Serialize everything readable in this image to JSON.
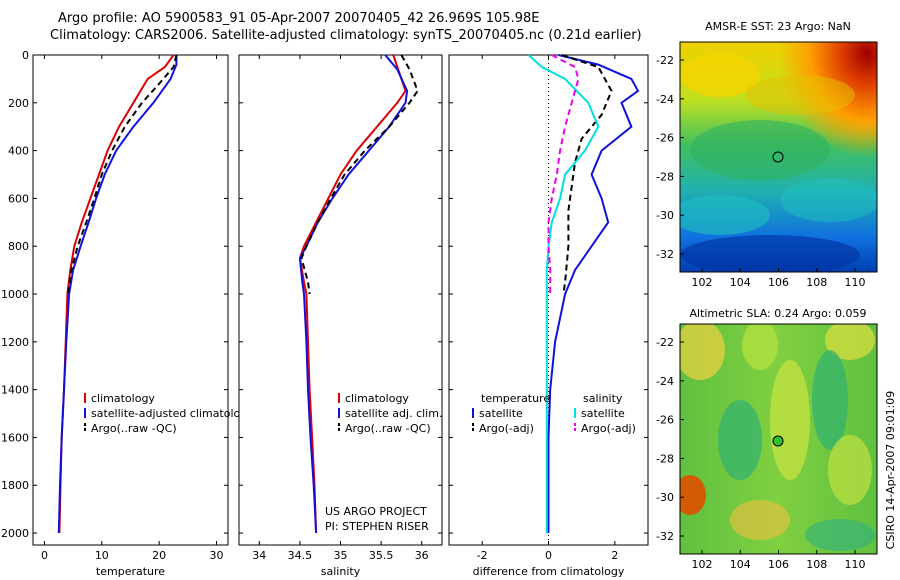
{
  "titles": {
    "line1": "Argo profile: AO 5900583_91 05-Apr-2007 20070405_42 26.969S 105.98E",
    "line2": "Climatology: CARS2006. Satellite-adjusted climatology: synTS_20070405.nc (0.21d earlier)"
  },
  "colors": {
    "climatology": "#dd0000",
    "satellite": "#1010dd",
    "argo": "#000000",
    "argo_sal_adj": "#ee00ee",
    "sal_satellite": "#00e0e0"
  },
  "chart_data": [
    {
      "type": "line",
      "xlabel": "temperature",
      "ylim": [
        2050,
        0
      ],
      "xlim": [
        -2,
        32
      ],
      "xticks": [
        "0",
        "10",
        "20",
        "30"
      ],
      "yticks": [
        "0",
        "200",
        "400",
        "600",
        "800",
        "1000",
        "1200",
        "1400",
        "1600",
        "1800",
        "2000"
      ],
      "legend": [
        "climatology",
        "satellite-adjusted climatology",
        "Argo(..raw -QC)"
      ],
      "series": [
        {
          "name": "climatology",
          "color": "#dd0000",
          "dash": "none",
          "points": [
            [
              22.5,
              0
            ],
            [
              21,
              50
            ],
            [
              18,
              100
            ],
            [
              15.5,
              200
            ],
            [
              13,
              300
            ],
            [
              11,
              400
            ],
            [
              9.5,
              500
            ],
            [
              8,
              600
            ],
            [
              6.5,
              700
            ],
            [
              5.2,
              800
            ],
            [
              4.5,
              900
            ],
            [
              4,
              1000
            ],
            [
              3.7,
              1200
            ],
            [
              3.4,
              1400
            ],
            [
              3,
              1600
            ],
            [
              2.8,
              1800
            ],
            [
              2.6,
              2000
            ]
          ]
        },
        {
          "name": "satellite-adjusted climatology",
          "color": "#1010dd",
          "dash": "none",
          "points": [
            [
              23,
              0
            ],
            [
              23,
              40
            ],
            [
              22,
              100
            ],
            [
              19,
              200
            ],
            [
              15.5,
              300
            ],
            [
              12.5,
              400
            ],
            [
              10.5,
              500
            ],
            [
              9,
              600
            ],
            [
              7.7,
              700
            ],
            [
              6.3,
              800
            ],
            [
              5,
              900
            ],
            [
              4.3,
              1000
            ],
            [
              3.8,
              1200
            ],
            [
              3.4,
              1400
            ],
            [
              3,
              1600
            ],
            [
              2.7,
              1800
            ],
            [
              2.5,
              2000
            ]
          ]
        },
        {
          "name": "Argo(..raw -QC)",
          "color": "#000000",
          "dash": "6,4",
          "points": [
            [
              23,
              0
            ],
            [
              22.5,
              50
            ],
            [
              20,
              120
            ],
            [
              17,
              200
            ],
            [
              14,
              300
            ],
            [
              11.8,
              400
            ],
            [
              10,
              500
            ],
            [
              8.7,
              600
            ],
            [
              7.3,
              700
            ],
            [
              5.8,
              800
            ],
            [
              4.7,
              900
            ],
            [
              4.1,
              1000
            ]
          ]
        }
      ]
    },
    {
      "type": "line",
      "xlabel": "salinity",
      "xlim": [
        33.75,
        36.25
      ],
      "ylim": [
        2050,
        0
      ],
      "xticks": [
        "34",
        "34.5",
        "35",
        "35.5",
        "36"
      ],
      "legend": [
        "climatology",
        "satellite adj. clim.",
        "Argo(..raw -QC)"
      ],
      "annotation": [
        "US ARGO PROJECT",
        "PI: STEPHEN RISER"
      ],
      "series": [
        {
          "name": "climatology",
          "color": "#dd0000",
          "dash": "none",
          "points": [
            [
              35.65,
              0
            ],
            [
              35.75,
              100
            ],
            [
              35.8,
              150
            ],
            [
              35.7,
              200
            ],
            [
              35.45,
              300
            ],
            [
              35.2,
              400
            ],
            [
              35,
              500
            ],
            [
              34.85,
              600
            ],
            [
              34.7,
              700
            ],
            [
              34.55,
              800
            ],
            [
              34.5,
              850
            ],
            [
              34.55,
              950
            ],
            [
              34.58,
              1000
            ],
            [
              34.6,
              1200
            ],
            [
              34.62,
              1400
            ],
            [
              34.65,
              1600
            ],
            [
              34.68,
              1800
            ],
            [
              34.7,
              2000
            ]
          ]
        },
        {
          "name": "satellite adj. clim.",
          "color": "#1010dd",
          "dash": "none",
          "points": [
            [
              35.55,
              0
            ],
            [
              35.7,
              60
            ],
            [
              35.82,
              150
            ],
            [
              35.8,
              200
            ],
            [
              35.6,
              300
            ],
            [
              35.35,
              400
            ],
            [
              35.1,
              500
            ],
            [
              34.9,
              600
            ],
            [
              34.72,
              700
            ],
            [
              34.58,
              800
            ],
            [
              34.5,
              850
            ],
            [
              34.53,
              950
            ],
            [
              34.55,
              1000
            ],
            [
              34.58,
              1200
            ],
            [
              34.6,
              1400
            ],
            [
              34.63,
              1600
            ],
            [
              34.67,
              1800
            ],
            [
              34.7,
              2000
            ]
          ]
        },
        {
          "name": "Argo(..raw -QC)",
          "color": "#000000",
          "dash": "6,4",
          "points": [
            [
              35.75,
              0
            ],
            [
              35.85,
              60
            ],
            [
              35.95,
              150
            ],
            [
              35.85,
              200
            ],
            [
              35.6,
              300
            ],
            [
              35.3,
              400
            ],
            [
              35.05,
              500
            ],
            [
              34.88,
              600
            ],
            [
              34.72,
              700
            ],
            [
              34.58,
              800
            ],
            [
              34.52,
              850
            ],
            [
              34.6,
              950
            ],
            [
              34.62,
              1000
            ]
          ]
        }
      ]
    },
    {
      "type": "line",
      "xlabel": "difference from climatology",
      "xlim": [
        -3,
        3
      ],
      "ylim": [
        2050,
        0
      ],
      "xticks": [
        "-2",
        "0",
        "2"
      ],
      "legend_temperature": [
        "temperature",
        "satellite",
        "Argo(-adj)"
      ],
      "legend_salinity": [
        "salinity",
        "satellite",
        "Argo(-adj)"
      ],
      "series": [
        {
          "name": "satellite",
          "group": "temperature",
          "color": "#1010dd",
          "dash": "none",
          "points": [
            [
              0.3,
              0
            ],
            [
              1.5,
              40
            ],
            [
              2.5,
              100
            ],
            [
              2.7,
              150
            ],
            [
              2.2,
              200
            ],
            [
              2.5,
              300
            ],
            [
              1.6,
              400
            ],
            [
              1.3,
              500
            ],
            [
              1.6,
              600
            ],
            [
              1.8,
              700
            ],
            [
              1.3,
              800
            ],
            [
              0.8,
              900
            ],
            [
              0.5,
              1000
            ],
            [
              0.2,
              1200
            ],
            [
              0.05,
              1400
            ],
            [
              0,
              1600
            ],
            [
              0,
              1800
            ],
            [
              0,
              2000
            ]
          ]
        },
        {
          "name": "Argo(-adj)",
          "group": "temperature",
          "color": "#000000",
          "dash": "6,4",
          "points": [
            [
              0.4,
              0
            ],
            [
              1.5,
              50
            ],
            [
              1.9,
              150
            ],
            [
              1.6,
              250
            ],
            [
              1.0,
              350
            ],
            [
              0.8,
              450
            ],
            [
              0.7,
              550
            ],
            [
              0.6,
              650
            ],
            [
              0.6,
              800
            ],
            [
              0.5,
              950
            ],
            [
              0.45,
              1000
            ]
          ]
        },
        {
          "name": "satellite",
          "group": "salinity",
          "color": "#00e0e0",
          "dash": "none",
          "points": [
            [
              -0.6,
              0
            ],
            [
              -0.2,
              50
            ],
            [
              0.5,
              100
            ],
            [
              1.2,
              200
            ],
            [
              1.5,
              300
            ],
            [
              1.1,
              400
            ],
            [
              0.5,
              500
            ],
            [
              0.35,
              600
            ],
            [
              0.1,
              700
            ],
            [
              0,
              800
            ],
            [
              -0.05,
              900
            ],
            [
              -0.05,
              1000
            ],
            [
              -0.05,
              1200
            ],
            [
              -0.05,
              1400
            ],
            [
              -0.05,
              1600
            ],
            [
              -0.05,
              1800
            ],
            [
              -0.05,
              2000
            ]
          ]
        },
        {
          "name": "Argo(-adj)",
          "group": "salinity",
          "color": "#ee00ee",
          "dash": "6,4",
          "points": [
            [
              0.1,
              0
            ],
            [
              0.8,
              50
            ],
            [
              0.9,
              100
            ],
            [
              0.7,
              200
            ],
            [
              0.5,
              300
            ],
            [
              0.35,
              400
            ],
            [
              0.25,
              500
            ],
            [
              0.1,
              600
            ],
            [
              0,
              700
            ],
            [
              0,
              800
            ],
            [
              0.05,
              900
            ],
            [
              0.05,
              1000
            ]
          ]
        }
      ]
    }
  ],
  "maps": [
    {
      "title": "AMSR-E SST: 23 Argo: NaN",
      "yticks": [
        "-22",
        "-24",
        "-26",
        "-28",
        "-30",
        "-32"
      ],
      "xticks": [
        "102",
        "104",
        "106",
        "108",
        "110"
      ]
    },
    {
      "title": "Altimetric SLA: 0.24 Argo: 0.059",
      "yticks": [
        "-22",
        "-24",
        "-26",
        "-28",
        "-30",
        "-32"
      ],
      "xticks": [
        "102",
        "104",
        "106",
        "108",
        "110"
      ]
    }
  ],
  "credit": "CSIRO 14-Apr-2007 09:01:09"
}
